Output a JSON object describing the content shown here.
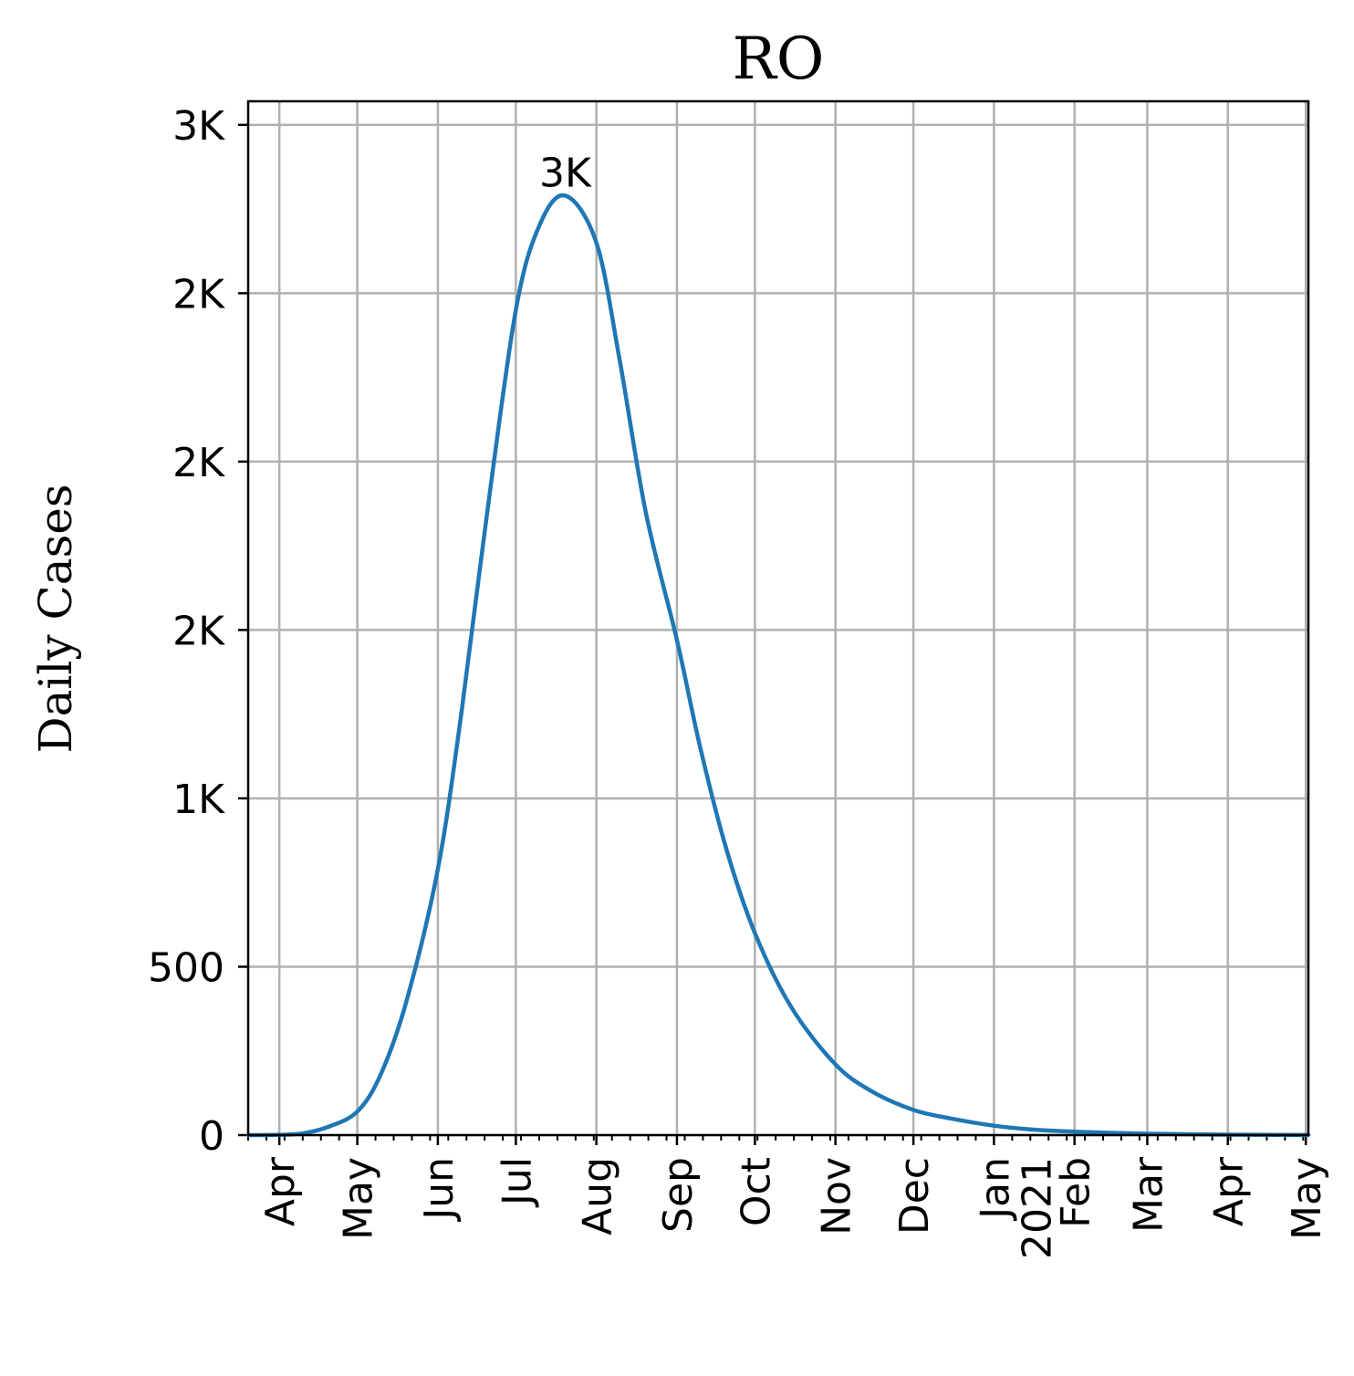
{
  "chart_data": {
    "type": "line",
    "title": "RO",
    "xlabel": "",
    "ylabel": "Daily Cases",
    "grid": true,
    "legend": "none",
    "x_range": [
      "2020-03-20",
      "2021-05-02"
    ],
    "ylim": [
      0,
      3070
    ],
    "x_ticks": [
      {
        "date": "2020-04-01",
        "label": "Apr"
      },
      {
        "date": "2020-05-01",
        "label": "May"
      },
      {
        "date": "2020-06-01",
        "label": "Jun"
      },
      {
        "date": "2020-07-01",
        "label": "Jul"
      },
      {
        "date": "2020-08-01",
        "label": "Aug"
      },
      {
        "date": "2020-09-01",
        "label": "Sep"
      },
      {
        "date": "2020-10-01",
        "label": "Oct"
      },
      {
        "date": "2020-11-01",
        "label": "Nov"
      },
      {
        "date": "2020-12-01",
        "label": "Dec"
      },
      {
        "date": "2021-01-01",
        "label": "Jan\n2021"
      },
      {
        "date": "2021-02-01",
        "label": "Feb"
      },
      {
        "date": "2021-03-01",
        "label": "Mar"
      },
      {
        "date": "2021-04-01",
        "label": "Apr"
      },
      {
        "date": "2021-05-01",
        "label": "May"
      }
    ],
    "y_ticks": [
      {
        "value": 0,
        "label": "0"
      },
      {
        "value": 500,
        "label": "500"
      },
      {
        "value": 1000,
        "label": "1K"
      },
      {
        "value": 1500,
        "label": "2K"
      },
      {
        "value": 2000,
        "label": "2K"
      },
      {
        "value": 2500,
        "label": "2K"
      },
      {
        "value": 3000,
        "label": "3K"
      }
    ],
    "series": [
      {
        "color": "#1f77b4",
        "points": [
          {
            "x": "2020-03-20",
            "y": 0
          },
          {
            "x": "2020-04-01",
            "y": 1
          },
          {
            "x": "2020-04-10",
            "y": 5
          },
          {
            "x": "2020-04-20",
            "y": 25
          },
          {
            "x": "2020-05-01",
            "y": 70
          },
          {
            "x": "2020-05-10",
            "y": 180
          },
          {
            "x": "2020-05-20",
            "y": 400
          },
          {
            "x": "2020-06-01",
            "y": 790
          },
          {
            "x": "2020-06-10",
            "y": 1250
          },
          {
            "x": "2020-06-20",
            "y": 1850
          },
          {
            "x": "2020-07-01",
            "y": 2450
          },
          {
            "x": "2020-07-10",
            "y": 2700
          },
          {
            "x": "2020-07-20",
            "y": 2790
          },
          {
            "x": "2020-08-01",
            "y": 2650
          },
          {
            "x": "2020-08-10",
            "y": 2300
          },
          {
            "x": "2020-08-20",
            "y": 1850
          },
          {
            "x": "2020-09-01",
            "y": 1470
          },
          {
            "x": "2020-09-10",
            "y": 1150
          },
          {
            "x": "2020-09-20",
            "y": 850
          },
          {
            "x": "2020-10-01",
            "y": 600
          },
          {
            "x": "2020-10-15",
            "y": 380
          },
          {
            "x": "2020-11-01",
            "y": 210
          },
          {
            "x": "2020-11-15",
            "y": 130
          },
          {
            "x": "2020-12-01",
            "y": 75
          },
          {
            "x": "2020-12-15",
            "y": 50
          },
          {
            "x": "2021-01-01",
            "y": 28
          },
          {
            "x": "2021-01-15",
            "y": 17
          },
          {
            "x": "2021-02-01",
            "y": 10
          },
          {
            "x": "2021-03-01",
            "y": 4
          },
          {
            "x": "2021-04-01",
            "y": 1.5
          },
          {
            "x": "2021-05-02",
            "y": 0.5
          }
        ]
      }
    ],
    "annotations": [
      {
        "x": "2020-07-20",
        "y": 2790,
        "text": "3K"
      }
    ]
  }
}
